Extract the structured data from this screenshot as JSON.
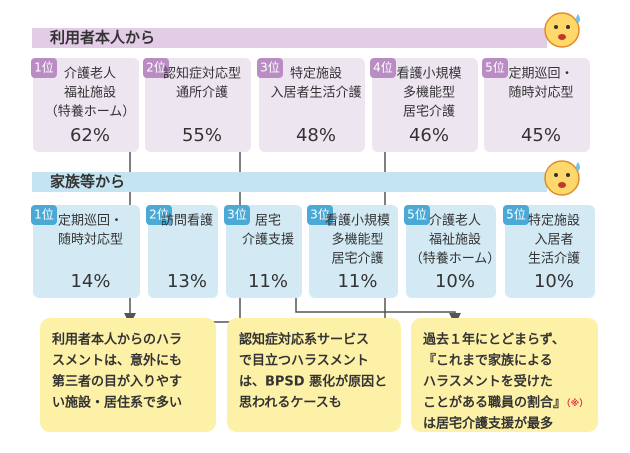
{
  "sections": [
    {
      "title": "利用者本人から",
      "items": [
        {
          "rank": "1位",
          "label": [
            "介護老人",
            "福祉施設",
            "（特養ホーム）"
          ],
          "value": "62%"
        },
        {
          "rank": "2位",
          "label": [
            "認知症対応型",
            "通所介護"
          ],
          "value": "55%"
        },
        {
          "rank": "3位",
          "label": [
            "特定施設",
            "入居者生活介護"
          ],
          "value": "48%"
        },
        {
          "rank": "4位",
          "label": [
            "看護小規模",
            "多機能型",
            "居宅介護"
          ],
          "value": "46%"
        },
        {
          "rank": "5位",
          "label": [
            "定期巡回・",
            "随時対応型"
          ],
          "value": "45%"
        }
      ]
    },
    {
      "title": "家族等から",
      "items": [
        {
          "rank": "1位",
          "label": [
            "定期巡回・",
            "随時対応型"
          ],
          "value": "14%"
        },
        {
          "rank": "2位",
          "label": [
            "訪問看護"
          ],
          "value": "13%"
        },
        {
          "rank": "3位",
          "label": [
            "居宅",
            "介護支援"
          ],
          "value": "11%"
        },
        {
          "rank": "3位",
          "label": [
            "看護小規模",
            "多機能型",
            "居宅介護"
          ],
          "value": "11%"
        },
        {
          "rank": "5位",
          "label": [
            "介護老人",
            "福祉施設",
            "（特養ホーム）"
          ],
          "value": "10%"
        },
        {
          "rank": "5位",
          "label": [
            "特定施設",
            "入居者",
            "生活介護"
          ],
          "value": "10%"
        }
      ]
    }
  ],
  "notes": [
    {
      "lines": [
        "利用者本人からのハラ",
        "スメントは、意外にも",
        "第三者の目が入りやす",
        "い施設・居住系で多い"
      ]
    },
    {
      "lines": [
        "認知症対応系サービス",
        "で目立つハラスメント",
        "は、BPSD 悪化が原因と",
        "思われるケースも"
      ]
    },
    {
      "lines": [
        "過去１年にとどまらず、",
        "『これまで家族による",
        "ハラスメントを受けた",
        "ことがある職員の割合』",
        "は居宅介護支援が最多"
      ],
      "mark": "（※）"
    }
  ]
}
